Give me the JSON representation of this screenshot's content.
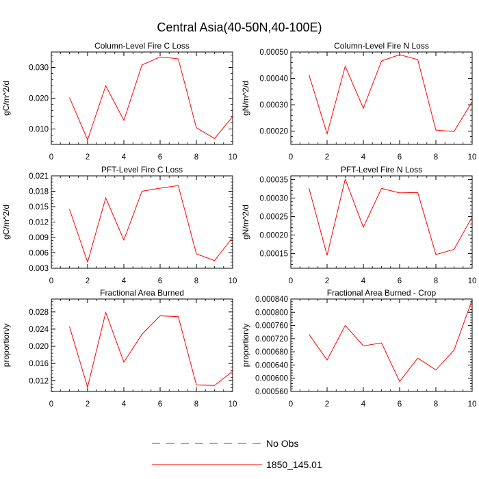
{
  "title": "Central Asia(40-50N,40-100E)",
  "colors": {
    "series": "#ff0000",
    "no_obs": "#4b4bb4",
    "axis": "#000000"
  },
  "legend": {
    "placement": "bottom-center",
    "entries": [
      {
        "label": "No Obs",
        "style": "dashed",
        "color": "#4b4bb4"
      },
      {
        "label": "1850_145.01",
        "style": "solid",
        "color": "#ff0000"
      }
    ]
  },
  "chart_data": [
    {
      "type": "line",
      "title": "Column-Level Fire C Loss",
      "ylabel": "gC/m^2/d",
      "xlim": [
        0,
        10
      ],
      "ylim": [
        0.005,
        0.035
      ],
      "xticks": [
        0,
        2,
        4,
        6,
        8,
        10
      ],
      "xtick_labels": [
        "0",
        "2",
        "4",
        "6",
        "8",
        "10"
      ],
      "yticks": [
        0.01,
        0.02,
        0.03
      ],
      "ytick_labels": [
        "0.010",
        "0.020",
        "0.030"
      ],
      "x": [
        1,
        2,
        3,
        4,
        5,
        6,
        7,
        8,
        9,
        10
      ],
      "series": [
        {
          "values": [
            0.0202,
            0.0065,
            0.024,
            0.0128,
            0.0308,
            0.0334,
            0.0328,
            0.0104,
            0.0069,
            0.014
          ]
        }
      ]
    },
    {
      "type": "line",
      "title": "Column-Level Fire N Loss",
      "ylabel": "gN/m^2/d",
      "xlim": [
        0,
        10
      ],
      "ylim": [
        0.00015,
        0.0005
      ],
      "xticks": [
        0,
        2,
        4,
        6,
        8,
        10
      ],
      "xtick_labels": [
        "0",
        "2",
        "4",
        "6",
        "8",
        "10"
      ],
      "yticks": [
        0.0002,
        0.0003,
        0.0004,
        0.0005
      ],
      "ytick_labels": [
        "0.00020",
        "0.00030",
        "0.00040",
        "0.00050"
      ],
      "x": [
        1,
        2,
        3,
        4,
        5,
        6,
        7,
        8,
        9,
        10
      ],
      "series": [
        {
          "values": [
            0.000414,
            0.00019,
            0.000446,
            0.000287,
            0.000466,
            0.00049,
            0.000471,
            0.000204,
            0.000199,
            0.000312
          ]
        }
      ]
    },
    {
      "type": "line",
      "title": "PFT-Level Fire C Loss",
      "ylabel": "gC/m^2/d",
      "xlim": [
        0,
        10
      ],
      "ylim": [
        0.003,
        0.021
      ],
      "xticks": [
        0,
        2,
        4,
        6,
        8,
        10
      ],
      "xtick_labels": [
        "0",
        "2",
        "4",
        "6",
        "8",
        "10"
      ],
      "yticks": [
        0.003,
        0.006,
        0.009,
        0.012,
        0.015,
        0.018,
        0.021
      ],
      "ytick_labels": [
        "0.003",
        "0.006",
        "0.009",
        "0.012",
        "0.015",
        "0.018",
        "0.021"
      ],
      "x": [
        1,
        2,
        3,
        4,
        5,
        6,
        7,
        8,
        9,
        10
      ],
      "series": [
        {
          "values": [
            0.0145,
            0.0042,
            0.0167,
            0.0085,
            0.018,
            0.0186,
            0.0191,
            0.0058,
            0.0045,
            0.009
          ]
        }
      ]
    },
    {
      "type": "line",
      "title": "PFT-Level Fire N Loss",
      "ylabel": "gN/m^2/d",
      "xlim": [
        0,
        10
      ],
      "ylim": [
        0.00011,
        0.00036
      ],
      "xticks": [
        0,
        2,
        4,
        6,
        8,
        10
      ],
      "xtick_labels": [
        "0",
        "2",
        "4",
        "6",
        "8",
        "10"
      ],
      "yticks": [
        0.00015,
        0.0002,
        0.00025,
        0.0003,
        0.00035
      ],
      "ytick_labels": [
        "0.00015",
        "0.00020",
        "0.00025",
        "0.00030",
        "0.00035"
      ],
      "x": [
        1,
        2,
        3,
        4,
        5,
        6,
        7,
        8,
        9,
        10
      ],
      "series": [
        {
          "values": [
            0.000327,
            0.000145,
            0.000351,
            0.000221,
            0.000326,
            0.000314,
            0.000315,
            0.000147,
            0.000161,
            0.000249
          ]
        }
      ]
    },
    {
      "type": "line",
      "title": "Fractional Area Burned",
      "ylabel": "proportion/y",
      "xlim": [
        0,
        10
      ],
      "ylim": [
        0.0095,
        0.031
      ],
      "xticks": [
        0,
        2,
        4,
        6,
        8,
        10
      ],
      "xtick_labels": [
        "0",
        "2",
        "4",
        "6",
        "8",
        "10"
      ],
      "yticks": [
        0.012,
        0.016,
        0.02,
        0.024,
        0.028
      ],
      "ytick_labels": [
        "0.012",
        "0.016",
        "0.020",
        "0.024",
        "0.028"
      ],
      "x": [
        1,
        2,
        3,
        4,
        5,
        6,
        7,
        8,
        9,
        10
      ],
      "series": [
        {
          "values": [
            0.0246,
            0.0105,
            0.0279,
            0.0163,
            0.0228,
            0.0271,
            0.0269,
            0.011,
            0.0109,
            0.0142
          ]
        }
      ]
    },
    {
      "type": "line",
      "title": "Fractional Area Burned - Crop",
      "ylabel": "proportion/y",
      "xlim": [
        0,
        10
      ],
      "ylim": [
        0.00056,
        0.00084
      ],
      "xticks": [
        0,
        2,
        4,
        6,
        8,
        10
      ],
      "xtick_labels": [
        "0",
        "2",
        "4",
        "6",
        "8",
        "10"
      ],
      "yticks": [
        0.00056,
        0.0006,
        0.00064,
        0.00068,
        0.00072,
        0.00076,
        0.0008,
        0.00084
      ],
      "ytick_labels": [
        "0.000560",
        "0.000600",
        "0.000640",
        "0.000680",
        "0.000720",
        "0.000760",
        "0.000800",
        "0.000840"
      ],
      "x": [
        1,
        2,
        3,
        4,
        5,
        6,
        7,
        8,
        9,
        10
      ],
      "series": [
        {
          "values": [
            0.000733,
            0.000655,
            0.00076,
            0.000698,
            0.000707,
            0.00059,
            0.000661,
            0.000625,
            0.000685,
            0.000838
          ]
        }
      ]
    }
  ]
}
